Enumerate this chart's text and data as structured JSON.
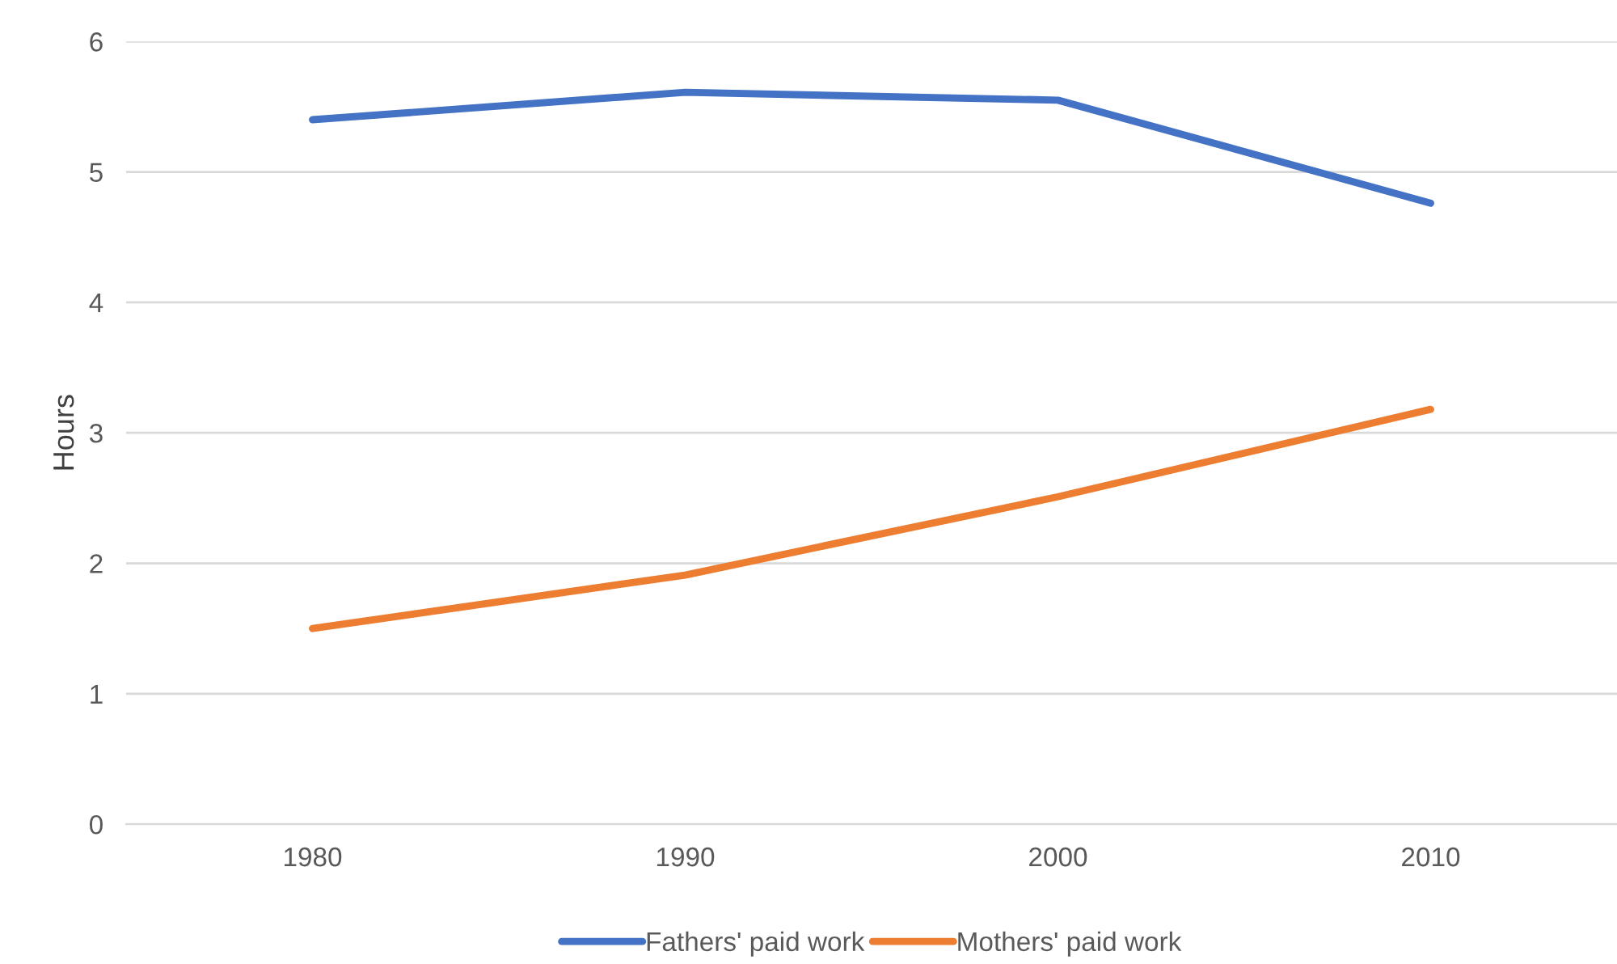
{
  "chart_data": {
    "type": "line",
    "ylabel": "Hours",
    "categories": [
      "1980",
      "1990",
      "2000",
      "2010"
    ],
    "series": [
      {
        "name": "Fathers' paid work",
        "color": "#4472c4",
        "values": [
          5.4,
          5.61,
          5.55,
          4.76
        ]
      },
      {
        "name": "Mothers' paid work",
        "color": "#ed7d31",
        "values": [
          1.5,
          1.91,
          2.51,
          3.18
        ]
      }
    ],
    "ylim": [
      0,
      6
    ],
    "yticks": [
      0,
      1,
      2,
      3,
      4,
      5,
      6
    ],
    "grid": "y",
    "legend": "bottom",
    "marker": "none",
    "line_style": "solid"
  }
}
